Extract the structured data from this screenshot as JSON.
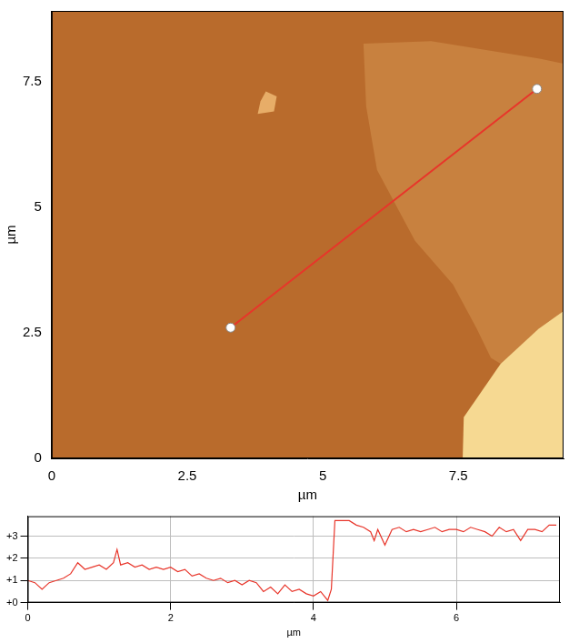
{
  "chart_data": [
    {
      "type": "scatter",
      "x_label": "µm",
      "y_label": "µm",
      "xlim": [
        0,
        9.44
      ],
      "ylim": [
        0,
        8.9
      ],
      "xticks": [
        0,
        2.5,
        5,
        7.5
      ],
      "yticks": [
        0,
        2.5,
        5,
        7.5
      ],
      "grid": false,
      "color": "#b96b2c",
      "series": [
        {
          "type": "area",
          "color": "#c8813f",
          "x": [
            5.75,
            5.8,
            6.0,
            6.7,
            7.4,
            7.84,
            8.1,
            8.28,
            8.98,
            9.44,
            9.44,
            9.0,
            7.0
          ],
          "values": [
            8.25,
            7.0,
            5.74,
            4.33,
            3.46,
            2.58,
            2.0,
            1.88,
            2.58,
            2.93,
            7.85,
            7.95,
            8.3
          ]
        },
        {
          "type": "area",
          "color": "#f6d992",
          "x": [
            7.58,
            7.6,
            8.28,
            8.98,
            9.44,
            9.44
          ],
          "values": [
            0,
            0.82,
            1.88,
            2.58,
            2.93,
            0
          ]
        },
        {
          "type": "area",
          "color": "#e7ad68",
          "x": [
            3.8,
            4.1,
            4.15,
            3.95,
            3.85
          ],
          "values": [
            6.85,
            6.9,
            7.2,
            7.3,
            7.1
          ]
        },
        {
          "type": "line",
          "color": "#e8352a",
          "marker": "circle",
          "x": [
            3.3,
            8.95
          ],
          "values": [
            2.6,
            7.35
          ]
        }
      ]
    },
    {
      "type": "line",
      "x_label": "µm",
      "xlim": [
        0,
        7.45
      ],
      "ylim": [
        0,
        3.9
      ],
      "xticks": [
        0,
        2,
        4,
        6
      ],
      "yticks": [
        {
          "value": 0,
          "label": "+0"
        },
        {
          "value": 1,
          "label": "+1"
        },
        {
          "value": 2,
          "label": "+2"
        },
        {
          "value": 3,
          "label": "+3"
        }
      ],
      "grid": true,
      "color": "#e8352a",
      "marker": "none",
      "x": [
        0,
        0.1,
        0.2,
        0.3,
        0.4,
        0.5,
        0.6,
        0.7,
        0.8,
        0.9,
        1.0,
        1.1,
        1.2,
        1.25,
        1.3,
        1.4,
        1.5,
        1.6,
        1.7,
        1.8,
        1.9,
        2.0,
        2.1,
        2.2,
        2.3,
        2.4,
        2.5,
        2.6,
        2.7,
        2.8,
        2.9,
        3.0,
        3.1,
        3.2,
        3.3,
        3.4,
        3.5,
        3.6,
        3.7,
        3.8,
        3.9,
        4.0,
        4.1,
        4.2,
        4.25,
        4.3,
        4.4,
        4.5,
        4.6,
        4.7,
        4.8,
        4.85,
        4.9,
        5.0,
        5.1,
        5.2,
        5.3,
        5.4,
        5.5,
        5.6,
        5.7,
        5.8,
        5.9,
        6.0,
        6.1,
        6.2,
        6.3,
        6.4,
        6.5,
        6.6,
        6.7,
        6.8,
        6.9,
        7.0,
        7.1,
        7.2,
        7.3,
        7.4
      ],
      "values": [
        1.0,
        0.9,
        0.6,
        0.9,
        1.0,
        1.1,
        1.3,
        1.8,
        1.5,
        1.6,
        1.7,
        1.5,
        1.8,
        2.4,
        1.7,
        1.8,
        1.6,
        1.7,
        1.5,
        1.6,
        1.5,
        1.6,
        1.4,
        1.5,
        1.2,
        1.3,
        1.1,
        1.0,
        1.1,
        0.9,
        1.0,
        0.8,
        1.0,
        0.9,
        0.5,
        0.7,
        0.4,
        0.8,
        0.5,
        0.6,
        0.4,
        0.3,
        0.5,
        0.1,
        0.6,
        3.7,
        3.7,
        3.7,
        3.5,
        3.4,
        3.2,
        2.8,
        3.3,
        2.6,
        3.3,
        3.4,
        3.2,
        3.3,
        3.2,
        3.3,
        3.4,
        3.2,
        3.3,
        3.3,
        3.2,
        3.4,
        3.3,
        3.2,
        3.0,
        3.4,
        3.2,
        3.3,
        2.8,
        3.3,
        3.3,
        3.2,
        3.5,
        3.5
      ]
    }
  ]
}
